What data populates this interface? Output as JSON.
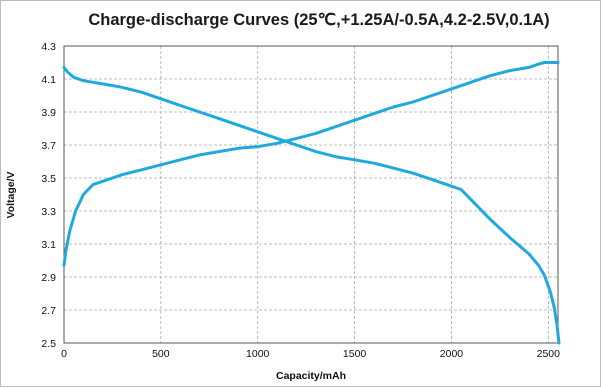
{
  "chart_data": {
    "type": "line",
    "title": "Charge-discharge Curves (25℃,+1.25A/-0.5A,4.2-2.5V,0.1A)",
    "xlabel": "Capacity/mAh",
    "ylabel": "Voltage/V",
    "xlim": [
      0,
      2550
    ],
    "ylim": [
      2.5,
      4.3
    ],
    "xticks": [
      0,
      500,
      1000,
      1500,
      2000,
      2500
    ],
    "yticks": [
      2.5,
      2.7,
      2.9,
      3.1,
      3.3,
      3.5,
      3.7,
      3.9,
      4.1,
      4.3
    ],
    "xtick_labels": [
      "0",
      "500",
      "1000",
      "1500",
      "2000",
      "2500"
    ],
    "ytick_labels": [
      "2.5",
      "2.7",
      "2.9",
      "3.1",
      "3.3",
      "3.5",
      "3.7",
      "3.9",
      "4.1",
      "4.3"
    ],
    "grid": true,
    "legend": "none",
    "line_color": "#1fa9dc",
    "series": [
      {
        "x": [
          0,
          10,
          30,
          60,
          100,
          150,
          200,
          250,
          300,
          400,
          500,
          600,
          700,
          800,
          900,
          1000,
          1100,
          1200,
          1300,
          1400,
          1500,
          1600,
          1700,
          1800,
          1900,
          2000,
          2100,
          2200,
          2300,
          2400,
          2450,
          2480,
          2500,
          2550
        ],
        "y": [
          2.97,
          3.06,
          3.18,
          3.3,
          3.4,
          3.46,
          3.48,
          3.5,
          3.52,
          3.55,
          3.58,
          3.61,
          3.64,
          3.66,
          3.68,
          3.69,
          3.71,
          3.74,
          3.77,
          3.81,
          3.85,
          3.89,
          3.93,
          3.96,
          4.0,
          4.04,
          4.08,
          4.12,
          4.15,
          4.17,
          4.19,
          4.2,
          4.2,
          4.2
        ]
      },
      {
        "x": [
          0,
          20,
          50,
          100,
          150,
          200,
          300,
          400,
          500,
          600,
          700,
          800,
          900,
          1000,
          1100,
          1200,
          1300,
          1400,
          1500,
          1600,
          1700,
          1800,
          1900,
          2000,
          2050,
          2100,
          2200,
          2300,
          2400,
          2450,
          2480,
          2510,
          2530,
          2545,
          2555
        ],
        "y": [
          4.17,
          4.14,
          4.11,
          4.09,
          4.08,
          4.07,
          4.05,
          4.02,
          3.98,
          3.94,
          3.9,
          3.86,
          3.82,
          3.78,
          3.74,
          3.7,
          3.66,
          3.63,
          3.61,
          3.59,
          3.56,
          3.53,
          3.49,
          3.45,
          3.43,
          3.37,
          3.25,
          3.14,
          3.04,
          2.97,
          2.91,
          2.81,
          2.72,
          2.61,
          2.5
        ]
      }
    ]
  }
}
